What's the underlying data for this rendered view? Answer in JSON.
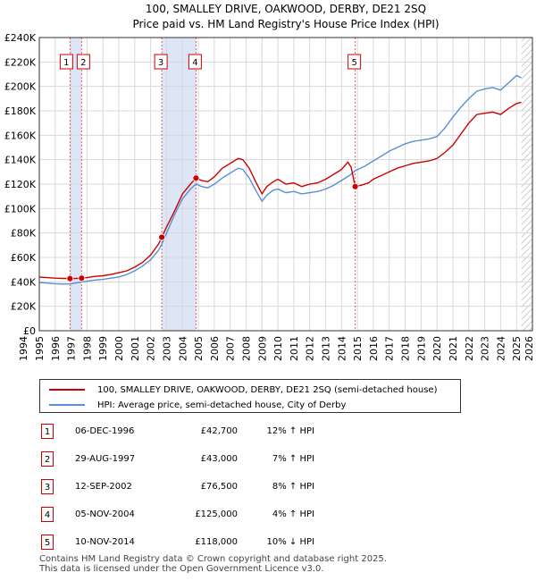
{
  "chart_data": {
    "type": "line",
    "title": "100, SMALLEY DRIVE, OAKWOOD, DERBY, DE21 2SQ",
    "subtitle": "Price paid vs. HM Land Registry's House Price Index (HPI)",
    "xlim": [
      1995,
      2026
    ],
    "ylim": [
      0,
      240000
    ],
    "x_ticks": [
      1994,
      1995,
      1996,
      1997,
      1998,
      1999,
      2000,
      2001,
      2002,
      2003,
      2004,
      2005,
      2006,
      2007,
      2008,
      2009,
      2010,
      2011,
      2012,
      2013,
      2014,
      2015,
      2016,
      2017,
      2018,
      2019,
      2020,
      2021,
      2022,
      2023,
      2024,
      2025,
      2026
    ],
    "y_ticks": [
      {
        "value": 0,
        "label": "£0"
      },
      {
        "value": 20000,
        "label": "£20K"
      },
      {
        "value": 40000,
        "label": "£40K"
      },
      {
        "value": 60000,
        "label": "£60K"
      },
      {
        "value": 80000,
        "label": "£80K"
      },
      {
        "value": 100000,
        "label": "£100K"
      },
      {
        "value": 120000,
        "label": "£120K"
      },
      {
        "value": 140000,
        "label": "£140K"
      },
      {
        "value": 160000,
        "label": "£160K"
      },
      {
        "value": 180000,
        "label": "£180K"
      },
      {
        "value": 200000,
        "label": "£200K"
      },
      {
        "value": 220000,
        "label": "£220K"
      },
      {
        "value": 240000,
        "label": "£240K"
      }
    ],
    "shaded_spans": [
      [
        1996.93,
        1997.66
      ],
      [
        2002.7,
        2004.85
      ]
    ],
    "hatched_after": 2025.3,
    "series": [
      {
        "name": "100, SMALLEY DRIVE, OAKWOOD, DERBY, DE21 2SQ (semi-detached house)",
        "color": "#cc0000",
        "points": [
          [
            1995.0,
            44000
          ],
          [
            1995.5,
            43500
          ],
          [
            1996.0,
            43000
          ],
          [
            1996.5,
            42800
          ],
          [
            1996.93,
            42700
          ],
          [
            1997.3,
            42800
          ],
          [
            1997.66,
            43000
          ],
          [
            1998.0,
            43500
          ],
          [
            1998.5,
            44500
          ],
          [
            1999.0,
            45000
          ],
          [
            1999.5,
            46000
          ],
          [
            2000.0,
            47500
          ],
          [
            2000.5,
            49000
          ],
          [
            2001.0,
            52000
          ],
          [
            2001.5,
            56000
          ],
          [
            2002.0,
            62000
          ],
          [
            2002.5,
            71000
          ],
          [
            2002.7,
            76500
          ],
          [
            2003.0,
            85000
          ],
          [
            2003.5,
            98000
          ],
          [
            2004.0,
            112000
          ],
          [
            2004.5,
            120000
          ],
          [
            2004.85,
            125000
          ],
          [
            2005.2,
            123000
          ],
          [
            2005.6,
            122000
          ],
          [
            2006.0,
            126000
          ],
          [
            2006.5,
            133000
          ],
          [
            2007.0,
            137000
          ],
          [
            2007.5,
            141000
          ],
          [
            2007.8,
            140000
          ],
          [
            2008.2,
            133000
          ],
          [
            2008.6,
            122000
          ],
          [
            2009.0,
            112000
          ],
          [
            2009.3,
            118000
          ],
          [
            2009.7,
            122000
          ],
          [
            2010.0,
            124000
          ],
          [
            2010.5,
            120000
          ],
          [
            2011.0,
            121000
          ],
          [
            2011.5,
            118000
          ],
          [
            2012.0,
            120000
          ],
          [
            2012.5,
            121000
          ],
          [
            2013.0,
            124000
          ],
          [
            2013.5,
            128000
          ],
          [
            2014.0,
            132000
          ],
          [
            2014.4,
            138000
          ],
          [
            2014.6,
            134000
          ],
          [
            2014.86,
            118000
          ],
          [
            2015.2,
            119000
          ],
          [
            2015.7,
            121000
          ],
          [
            2016.0,
            124000
          ],
          [
            2016.5,
            127000
          ],
          [
            2017.0,
            130000
          ],
          [
            2017.5,
            133000
          ],
          [
            2018.0,
            135000
          ],
          [
            2018.5,
            137000
          ],
          [
            2019.0,
            138000
          ],
          [
            2019.5,
            139000
          ],
          [
            2020.0,
            141000
          ],
          [
            2020.5,
            146000
          ],
          [
            2021.0,
            152000
          ],
          [
            2021.5,
            161000
          ],
          [
            2022.0,
            170000
          ],
          [
            2022.5,
            177000
          ],
          [
            2023.0,
            178000
          ],
          [
            2023.5,
            179000
          ],
          [
            2024.0,
            177000
          ],
          [
            2024.5,
            182000
          ],
          [
            2025.0,
            186000
          ],
          [
            2025.3,
            187000
          ]
        ]
      },
      {
        "name": "HPI: Average price, semi-detached house, City of Derby",
        "color": "#5b8fd0",
        "points": [
          [
            1995.0,
            39500
          ],
          [
            1995.5,
            39000
          ],
          [
            1996.0,
            38500
          ],
          [
            1996.5,
            38200
          ],
          [
            1997.0,
            38500
          ],
          [
            1997.5,
            39500
          ],
          [
            1998.0,
            40500
          ],
          [
            1998.5,
            41500
          ],
          [
            1999.0,
            42000
          ],
          [
            1999.5,
            43000
          ],
          [
            2000.0,
            44000
          ],
          [
            2000.5,
            46000
          ],
          [
            2001.0,
            49000
          ],
          [
            2001.5,
            53000
          ],
          [
            2002.0,
            58000
          ],
          [
            2002.5,
            66000
          ],
          [
            2002.7,
            70800
          ],
          [
            2003.0,
            80000
          ],
          [
            2003.5,
            95000
          ],
          [
            2004.0,
            108000
          ],
          [
            2004.5,
            116000
          ],
          [
            2004.85,
            120200
          ],
          [
            2005.2,
            118000
          ],
          [
            2005.6,
            117000
          ],
          [
            2006.0,
            120000
          ],
          [
            2006.5,
            125000
          ],
          [
            2007.0,
            129000
          ],
          [
            2007.5,
            133000
          ],
          [
            2007.8,
            132000
          ],
          [
            2008.2,
            125000
          ],
          [
            2008.6,
            115000
          ],
          [
            2009.0,
            106000
          ],
          [
            2009.3,
            111000
          ],
          [
            2009.7,
            115000
          ],
          [
            2010.0,
            116000
          ],
          [
            2010.5,
            113000
          ],
          [
            2011.0,
            114000
          ],
          [
            2011.5,
            112000
          ],
          [
            2012.0,
            113000
          ],
          [
            2012.5,
            114000
          ],
          [
            2013.0,
            116000
          ],
          [
            2013.5,
            119000
          ],
          [
            2014.0,
            123000
          ],
          [
            2014.5,
            127000
          ],
          [
            2014.86,
            131000
          ],
          [
            2015.5,
            135000
          ],
          [
            2016.0,
            139000
          ],
          [
            2016.5,
            143000
          ],
          [
            2017.0,
            147000
          ],
          [
            2017.5,
            150000
          ],
          [
            2018.0,
            153000
          ],
          [
            2018.5,
            155000
          ],
          [
            2019.0,
            156000
          ],
          [
            2019.5,
            157000
          ],
          [
            2020.0,
            159000
          ],
          [
            2020.5,
            166000
          ],
          [
            2021.0,
            175000
          ],
          [
            2021.5,
            183000
          ],
          [
            2022.0,
            190000
          ],
          [
            2022.5,
            196000
          ],
          [
            2023.0,
            198000
          ],
          [
            2023.5,
            199000
          ],
          [
            2024.0,
            197000
          ],
          [
            2024.5,
            203000
          ],
          [
            2025.0,
            209000
          ],
          [
            2025.3,
            207000
          ]
        ]
      }
    ],
    "sales": [
      {
        "id": "1",
        "x": 1996.93,
        "y": 42700
      },
      {
        "id": "2",
        "x": 1997.66,
        "y": 43000
      },
      {
        "id": "3",
        "x": 2002.7,
        "y": 76500
      },
      {
        "id": "4",
        "x": 2004.85,
        "y": 125000
      },
      {
        "id": "5",
        "x": 2014.86,
        "y": 118000
      }
    ]
  },
  "legend": {
    "property_label": "100, SMALLEY DRIVE, OAKWOOD, DERBY, DE21 2SQ (semi-detached house)",
    "hpi_label": "HPI: Average price, semi-detached house, City of Derby",
    "property_color": "#cc0000",
    "hpi_color": "#5b8fd0"
  },
  "sales_table": [
    {
      "id": "1",
      "date": "06-DEC-1996",
      "price": "£42,700",
      "hpi": "12% ↑ HPI"
    },
    {
      "id": "2",
      "date": "29-AUG-1997",
      "price": "£43,000",
      "hpi": "7% ↑ HPI"
    },
    {
      "id": "3",
      "date": "12-SEP-2002",
      "price": "£76,500",
      "hpi": "8% ↑ HPI"
    },
    {
      "id": "4",
      "date": "05-NOV-2004",
      "price": "£125,000",
      "hpi": "4% ↑ HPI"
    },
    {
      "id": "5",
      "date": "10-NOV-2014",
      "price": "£118,000",
      "hpi": "10% ↓ HPI"
    }
  ],
  "footer": {
    "line1": "Contains HM Land Registry data © Crown copyright and database right 2025.",
    "line2": "This data is licensed under the Open Government Licence v3.0."
  }
}
